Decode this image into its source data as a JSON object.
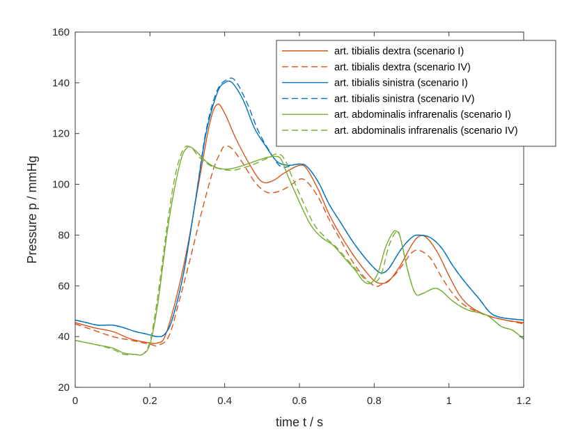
{
  "chart_data": {
    "type": "line",
    "title": "",
    "xlabel": "time t / s",
    "ylabel": "Pressure p / mmHg",
    "xlim": [
      0,
      1.2
    ],
    "ylim": [
      20,
      160
    ],
    "xticks": [
      0,
      0.2,
      0.4,
      0.6,
      0.8,
      1,
      1.2
    ],
    "xtick_labels": [
      "0",
      "0.2",
      "0.4",
      "0.6",
      "0.8",
      "1",
      "1.2"
    ],
    "yticks": [
      20,
      40,
      60,
      80,
      100,
      120,
      140,
      160
    ],
    "ytick_labels": [
      "20",
      "40",
      "60",
      "80",
      "100",
      "120",
      "140",
      "160"
    ],
    "grid": false,
    "box": true,
    "legend_position": "top-right",
    "series": [
      {
        "name": "art. tibialis dextra (scenario I)",
        "color": "#d95319",
        "dash": "solid",
        "points": [
          [
            0,
            45.5
          ],
          [
            0.05,
            43.5
          ],
          [
            0.1,
            42
          ],
          [
            0.15,
            39
          ],
          [
            0.2,
            37.5
          ],
          [
            0.22,
            37.5
          ],
          [
            0.24,
            40
          ],
          [
            0.27,
            55
          ],
          [
            0.3,
            75
          ],
          [
            0.33,
            100
          ],
          [
            0.36,
            124
          ],
          [
            0.38,
            131.5
          ],
          [
            0.4,
            128
          ],
          [
            0.43,
            118
          ],
          [
            0.47,
            107
          ],
          [
            0.5,
            101
          ],
          [
            0.53,
            101.5
          ],
          [
            0.56,
            104.5
          ],
          [
            0.6,
            107.5
          ],
          [
            0.62,
            106
          ],
          [
            0.65,
            98
          ],
          [
            0.68,
            88
          ],
          [
            0.71,
            80
          ],
          [
            0.74,
            73
          ],
          [
            0.77,
            67
          ],
          [
            0.8,
            62
          ],
          [
            0.82,
            61
          ],
          [
            0.84,
            62
          ],
          [
            0.87,
            68
          ],
          [
            0.9,
            76
          ],
          [
            0.92,
            79.5
          ],
          [
            0.94,
            79
          ],
          [
            0.97,
            73
          ],
          [
            1,
            64
          ],
          [
            1.03,
            56
          ],
          [
            1.06,
            51.5
          ],
          [
            1.1,
            48.5
          ],
          [
            1.15,
            46.5
          ],
          [
            1.2,
            45.5
          ]
        ]
      },
      {
        "name": "art. tibialis dextra (scenario IV)",
        "color": "#d95319",
        "dash": "dashed",
        "points": [
          [
            0,
            45
          ],
          [
            0.05,
            42.5
          ],
          [
            0.1,
            40
          ],
          [
            0.15,
            38.5
          ],
          [
            0.2,
            37
          ],
          [
            0.22,
            36.5
          ],
          [
            0.25,
            40
          ],
          [
            0.28,
            55
          ],
          [
            0.31,
            72
          ],
          [
            0.34,
            90
          ],
          [
            0.37,
            106
          ],
          [
            0.39,
            113
          ],
          [
            0.4,
            115
          ],
          [
            0.42,
            114
          ],
          [
            0.45,
            108
          ],
          [
            0.48,
            101
          ],
          [
            0.51,
            97
          ],
          [
            0.54,
            97
          ],
          [
            0.57,
            99
          ],
          [
            0.6,
            102
          ],
          [
            0.62,
            101
          ],
          [
            0.65,
            95
          ],
          [
            0.68,
            86
          ],
          [
            0.71,
            78
          ],
          [
            0.74,
            70
          ],
          [
            0.77,
            64
          ],
          [
            0.8,
            60
          ],
          [
            0.82,
            60.5
          ],
          [
            0.85,
            63.5
          ],
          [
            0.88,
            69
          ],
          [
            0.9,
            73
          ],
          [
            0.92,
            74
          ],
          [
            0.95,
            71
          ],
          [
            0.98,
            63.5
          ],
          [
            1.01,
            57
          ],
          [
            1.04,
            52.5
          ],
          [
            1.08,
            49.5
          ],
          [
            1.12,
            47.5
          ],
          [
            1.2,
            45
          ]
        ]
      },
      {
        "name": "art. tibialis sinistra (scenario I)",
        "color": "#0072bd",
        "dash": "solid",
        "points": [
          [
            0,
            46.5
          ],
          [
            0.03,
            45.5
          ],
          [
            0.06,
            44.5
          ],
          [
            0.1,
            44.5
          ],
          [
            0.13,
            43.5
          ],
          [
            0.16,
            42
          ],
          [
            0.19,
            41
          ],
          [
            0.22,
            40
          ],
          [
            0.24,
            41
          ],
          [
            0.26,
            47
          ],
          [
            0.29,
            65
          ],
          [
            0.32,
            92
          ],
          [
            0.35,
            120
          ],
          [
            0.38,
            136
          ],
          [
            0.4,
            140
          ],
          [
            0.42,
            140
          ],
          [
            0.45,
            133
          ],
          [
            0.48,
            122
          ],
          [
            0.51,
            115
          ],
          [
            0.54,
            109
          ],
          [
            0.57,
            107.5
          ],
          [
            0.6,
            108
          ],
          [
            0.62,
            107
          ],
          [
            0.65,
            101
          ],
          [
            0.68,
            92
          ],
          [
            0.71,
            85
          ],
          [
            0.74,
            78
          ],
          [
            0.77,
            72
          ],
          [
            0.8,
            67
          ],
          [
            0.82,
            65
          ],
          [
            0.84,
            67
          ],
          [
            0.87,
            74
          ],
          [
            0.9,
            79
          ],
          [
            0.92,
            80
          ],
          [
            0.95,
            79
          ],
          [
            0.98,
            75
          ],
          [
            1.01,
            68
          ],
          [
            1.04,
            62
          ],
          [
            1.08,
            55
          ],
          [
            1.11,
            49.5
          ],
          [
            1.14,
            47.5
          ],
          [
            1.2,
            46.5
          ]
        ]
      },
      {
        "name": "art. tibialis sinistra (scenario IV)",
        "color": "#0072bd",
        "dash": "dashed",
        "points": [
          [
            0,
            46.5
          ],
          [
            0.03,
            45.5
          ],
          [
            0.06,
            44.5
          ],
          [
            0.1,
            44.5
          ],
          [
            0.13,
            43.5
          ],
          [
            0.16,
            42
          ],
          [
            0.19,
            41
          ],
          [
            0.22,
            40
          ],
          [
            0.24,
            41
          ],
          [
            0.26,
            47
          ],
          [
            0.29,
            65
          ],
          [
            0.32,
            92
          ],
          [
            0.35,
            121
          ],
          [
            0.38,
            137
          ],
          [
            0.41,
            141.5
          ],
          [
            0.43,
            140.5
          ],
          [
            0.46,
            132
          ],
          [
            0.49,
            121
          ],
          [
            0.52,
            113
          ],
          [
            0.55,
            107
          ],
          [
            0.58,
            107.5
          ],
          [
            0.6,
            108
          ],
          [
            0.62,
            107
          ],
          [
            0.65,
            101
          ],
          [
            0.68,
            92
          ],
          [
            0.71,
            85
          ],
          [
            0.74,
            78
          ],
          [
            0.77,
            72
          ],
          [
            0.8,
            67
          ],
          [
            0.82,
            65
          ],
          [
            0.84,
            67
          ],
          [
            0.87,
            74
          ],
          [
            0.9,
            79
          ],
          [
            0.92,
            80
          ],
          [
            0.95,
            79
          ],
          [
            0.98,
            75
          ],
          [
            1.01,
            68
          ],
          [
            1.04,
            62
          ],
          [
            1.08,
            55
          ],
          [
            1.11,
            49.5
          ],
          [
            1.14,
            47.5
          ],
          [
            1.2,
            46.5
          ]
        ]
      },
      {
        "name": "art. abdominalis infrarenalis (scenario I)",
        "color": "#77ac30",
        "dash": "solid",
        "points": [
          [
            0,
            38.5
          ],
          [
            0.05,
            37
          ],
          [
            0.1,
            35.5
          ],
          [
            0.13,
            33.5
          ],
          [
            0.16,
            33
          ],
          [
            0.18,
            33
          ],
          [
            0.2,
            37
          ],
          [
            0.22,
            52
          ],
          [
            0.25,
            85
          ],
          [
            0.28,
            108
          ],
          [
            0.3,
            114.5
          ],
          [
            0.32,
            113.5
          ],
          [
            0.35,
            109
          ],
          [
            0.38,
            106.5
          ],
          [
            0.41,
            106
          ],
          [
            0.44,
            107
          ],
          [
            0.47,
            108.5
          ],
          [
            0.5,
            110
          ],
          [
            0.53,
            111
          ],
          [
            0.55,
            110
          ],
          [
            0.57,
            103
          ],
          [
            0.6,
            93
          ],
          [
            0.63,
            84
          ],
          [
            0.66,
            79
          ],
          [
            0.69,
            76
          ],
          [
            0.72,
            71
          ],
          [
            0.75,
            66
          ],
          [
            0.77,
            62
          ],
          [
            0.79,
            61
          ],
          [
            0.81,
            65
          ],
          [
            0.83,
            75
          ],
          [
            0.85,
            81
          ],
          [
            0.86,
            81.5
          ],
          [
            0.87,
            79
          ],
          [
            0.89,
            66
          ],
          [
            0.91,
            57
          ],
          [
            0.93,
            57
          ],
          [
            0.96,
            59
          ],
          [
            0.98,
            58
          ],
          [
            1.01,
            54
          ],
          [
            1.05,
            50.5
          ],
          [
            1.1,
            48.5
          ],
          [
            1.14,
            44
          ],
          [
            1.17,
            42.5
          ],
          [
            1.2,
            39
          ]
        ]
      },
      {
        "name": "art. abdominalis infrarenalis (scenario IV)",
        "color": "#77ac30",
        "dash": "dashed",
        "points": [
          [
            0,
            38.5
          ],
          [
            0.05,
            37
          ],
          [
            0.1,
            35
          ],
          [
            0.13,
            33
          ],
          [
            0.16,
            33
          ],
          [
            0.18,
            33
          ],
          [
            0.2,
            38
          ],
          [
            0.22,
            55
          ],
          [
            0.25,
            88
          ],
          [
            0.27,
            105
          ],
          [
            0.29,
            114
          ],
          [
            0.31,
            114.5
          ],
          [
            0.33,
            111
          ],
          [
            0.36,
            107.5
          ],
          [
            0.39,
            106
          ],
          [
            0.42,
            105.5
          ],
          [
            0.45,
            106.5
          ],
          [
            0.48,
            108
          ],
          [
            0.51,
            110
          ],
          [
            0.54,
            112
          ],
          [
            0.56,
            110
          ],
          [
            0.58,
            103
          ],
          [
            0.61,
            93
          ],
          [
            0.64,
            84
          ],
          [
            0.67,
            79
          ],
          [
            0.7,
            75
          ],
          [
            0.73,
            70
          ],
          [
            0.76,
            65
          ],
          [
            0.78,
            62
          ],
          [
            0.8,
            61
          ],
          [
            0.82,
            65
          ],
          [
            0.84,
            76
          ],
          [
            0.86,
            81.5
          ],
          [
            0.87,
            79
          ],
          [
            0.89,
            66
          ],
          [
            0.91,
            57
          ],
          [
            0.93,
            57
          ],
          [
            0.96,
            59
          ],
          [
            0.98,
            58
          ],
          [
            1.01,
            54
          ],
          [
            1.05,
            50.5
          ],
          [
            1.1,
            48.5
          ],
          [
            1.14,
            44
          ],
          [
            1.17,
            42.5
          ],
          [
            1.2,
            39
          ]
        ]
      }
    ]
  }
}
